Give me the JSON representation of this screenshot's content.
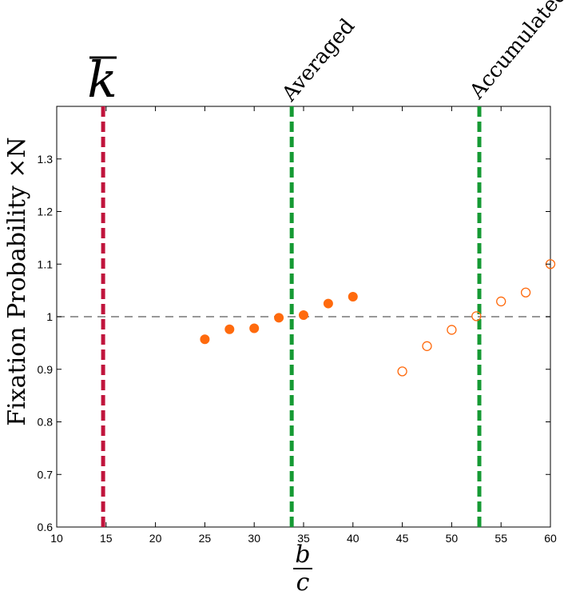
{
  "chart_data": {
    "type": "scatter",
    "title": "",
    "xlabel_num": "b",
    "xlabel_den": "c",
    "ylabel": "Fixation Probability ×N",
    "xlim": [
      10,
      60
    ],
    "ylim": [
      0.6,
      1.4
    ],
    "x_ticks": [
      10,
      15,
      20,
      25,
      30,
      35,
      40,
      45,
      50,
      55,
      60
    ],
    "x_tick_labels": [
      "10",
      "15",
      "20",
      "25",
      "30",
      "35",
      "40",
      "45",
      "50",
      "55",
      "60"
    ],
    "y_ticks": [
      0.6,
      0.7,
      0.8,
      0.9,
      1.0,
      1.1,
      1.2,
      1.3
    ],
    "y_tick_labels": [
      "0.6",
      "0.7",
      "0.8",
      "0.9",
      "1",
      "1.1",
      "1.2",
      "1.3"
    ],
    "grid": false,
    "reference_line": {
      "y": 1.0,
      "color": "#777777",
      "style": "dashed"
    },
    "vertical_lines": [
      {
        "x": 14.7,
        "label": "k",
        "overbar": true,
        "color": "#c0143c"
      },
      {
        "x": 33.8,
        "label": "Averaged",
        "color": "#169a34"
      },
      {
        "x": 52.8,
        "label": "Accumulated",
        "color": "#169a34"
      }
    ],
    "series": [
      {
        "marker": "filled-circle",
        "color": "#ff6a0d",
        "points": [
          [
            25,
            0.957
          ],
          [
            27.5,
            0.976
          ],
          [
            30,
            0.978
          ],
          [
            32.5,
            0.998
          ],
          [
            35,
            1.003
          ],
          [
            37.5,
            1.025
          ],
          [
            40,
            1.038
          ]
        ]
      },
      {
        "marker": "open-circle",
        "color": "#ff6a0d",
        "points": [
          [
            45,
            0.896
          ],
          [
            47.5,
            0.944
          ],
          [
            50,
            0.975
          ],
          [
            52.5,
            1.001
          ],
          [
            55,
            1.029
          ],
          [
            57.5,
            1.046
          ],
          [
            60,
            1.1
          ]
        ]
      }
    ]
  }
}
